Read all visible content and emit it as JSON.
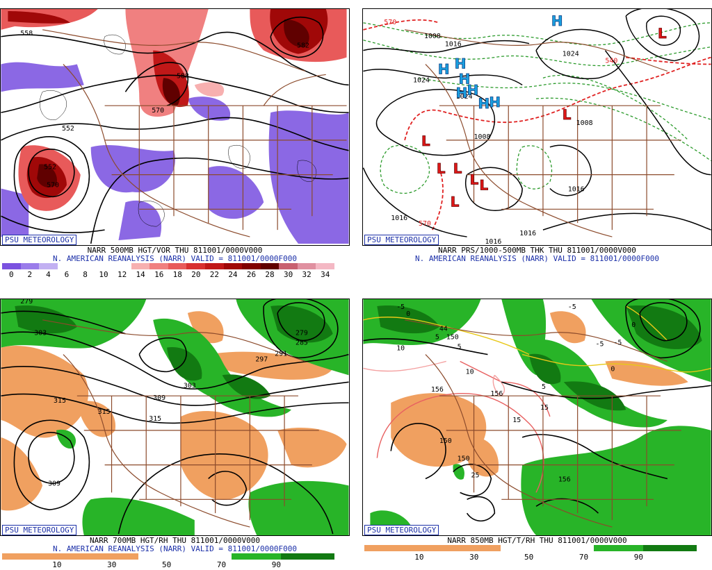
{
  "branding": "PSU METEOROLOGY",
  "panels": [
    {
      "title": "NARR 500MB HGT/VOR THU 811001/0000V000",
      "subtitle": "N. AMERICAN REANALYSIS (NARR) VALID = 811001/0000F000",
      "contour_labels": [
        "558",
        "552",
        "570",
        "588",
        "582",
        "552",
        "570"
      ],
      "legend_ticks": [
        "0",
        "2",
        "4",
        "6",
        "8",
        "10",
        "12",
        "14",
        "16",
        "18",
        "20",
        "22",
        "24",
        "26",
        "28",
        "30",
        "32",
        "34"
      ],
      "legend_colors": [
        "#7b52e0",
        "#9a7cea",
        "#c2b0f2",
        "#ffffff",
        "#ffffff",
        "#ffffff",
        "#ffffff",
        "#f7b0b0",
        "#f08080",
        "#e85a5a",
        "#d83030",
        "#c01818",
        "#a00808",
        "#800000",
        "#600000",
        "#c86070",
        "#e090a0",
        "#f4b8c4"
      ]
    },
    {
      "title": "NARR PRS/1000-500MB THK THU 811001/0000V000",
      "subtitle": "N. AMERICAN REANALYSIS (NARR) VALID = 811001/0000F000",
      "contour_labels": [
        "1008",
        "1016",
        "1024",
        "1024",
        "1024",
        "1016",
        "1008",
        "1016",
        "1016",
        "1016",
        "1008",
        "570",
        "540",
        "570"
      ],
      "high_symbol": "H",
      "low_symbol": "L"
    },
    {
      "title": "NARR 700MB HGT/RH THU 811001/0000V000",
      "subtitle": "N. AMERICAN REANALYSIS (NARR) VALID = 811001/0000F000",
      "contour_labels": [
        "279",
        "303",
        "315",
        "315",
        "309",
        "315",
        "309",
        "303",
        "297",
        "291",
        "285",
        "279"
      ],
      "legend_ticks": [
        "10",
        "30",
        "50",
        "70",
        "90"
      ]
    },
    {
      "title": "NARR 850MB HGT/T/RH THU 811001/0000V000",
      "contour_labels": [
        "-5",
        "0",
        "44",
        "5",
        "5",
        "10",
        "150",
        "10",
        "156",
        "156",
        "15",
        "150",
        "150",
        "25",
        "156",
        "-5",
        "-5",
        "-5",
        "0",
        "5",
        "15",
        "0"
      ],
      "legend_ticks": [
        "10",
        "30",
        "50",
        "70",
        "90"
      ]
    }
  ]
}
